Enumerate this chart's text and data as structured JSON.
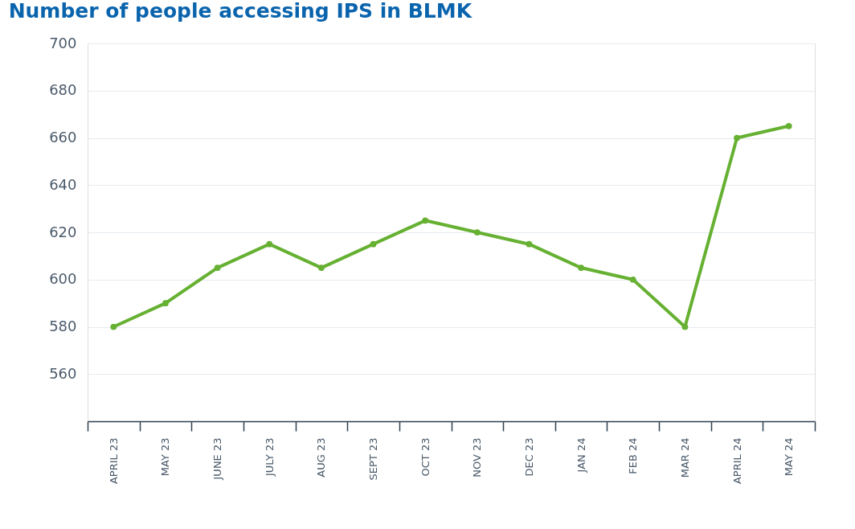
{
  "chart_data": {
    "type": "line",
    "title": "Number of people accessing IPS in BLMK",
    "categories": [
      "APRIL 23",
      "MAY 23",
      "JUNE 23",
      "JULY 23",
      "AUG 23",
      "SEPT 23",
      "OCT 23",
      "NOV 23",
      "DEC 23",
      "JAN 24",
      "FEB 24",
      "MAR 24",
      "APRIL 24",
      "MAY 24"
    ],
    "series": [
      {
        "color": "#66b032",
        "values": [
          580,
          590,
          605,
          615,
          605,
          615,
          625,
          620,
          615,
          605,
          600,
          580,
          660,
          665
        ]
      }
    ],
    "ylim": [
      540,
      700
    ],
    "yticks": [
      560,
      580,
      600,
      620,
      640,
      660,
      680,
      700
    ],
    "grid": "y",
    "marker": "circle",
    "line_style": "solid"
  }
}
